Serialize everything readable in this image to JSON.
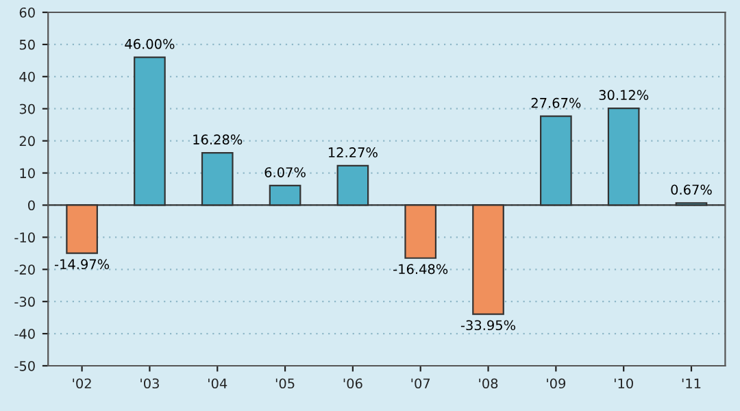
{
  "chart_data": {
    "type": "bar",
    "categories": [
      "'02",
      "'03",
      "'04",
      "'05",
      "'06",
      "'07",
      "'08",
      "'09",
      "'10",
      "'11"
    ],
    "values": [
      -14.97,
      46.0,
      16.28,
      6.07,
      12.27,
      -16.48,
      -33.95,
      27.67,
      30.12,
      0.67
    ],
    "value_labels": [
      "-14.97%",
      "46.00%",
      "16.28%",
      "6.07%",
      "12.27%",
      "-16.48%",
      "-33.95%",
      "27.67%",
      "30.12%",
      "0.67%"
    ],
    "colors": [
      "#f0905c",
      "#4fb0c8",
      "#4fb0c8",
      "#4fb0c8",
      "#4fb0c8",
      "#f0905c",
      "#f0905c",
      "#4fb0c8",
      "#4fb0c8",
      "#4fb0c8"
    ],
    "ylim": [
      -50,
      60
    ],
    "yticks": [
      -50,
      -40,
      -30,
      -20,
      -10,
      0,
      10,
      20,
      30,
      40,
      50,
      60
    ],
    "grid": "y"
  }
}
